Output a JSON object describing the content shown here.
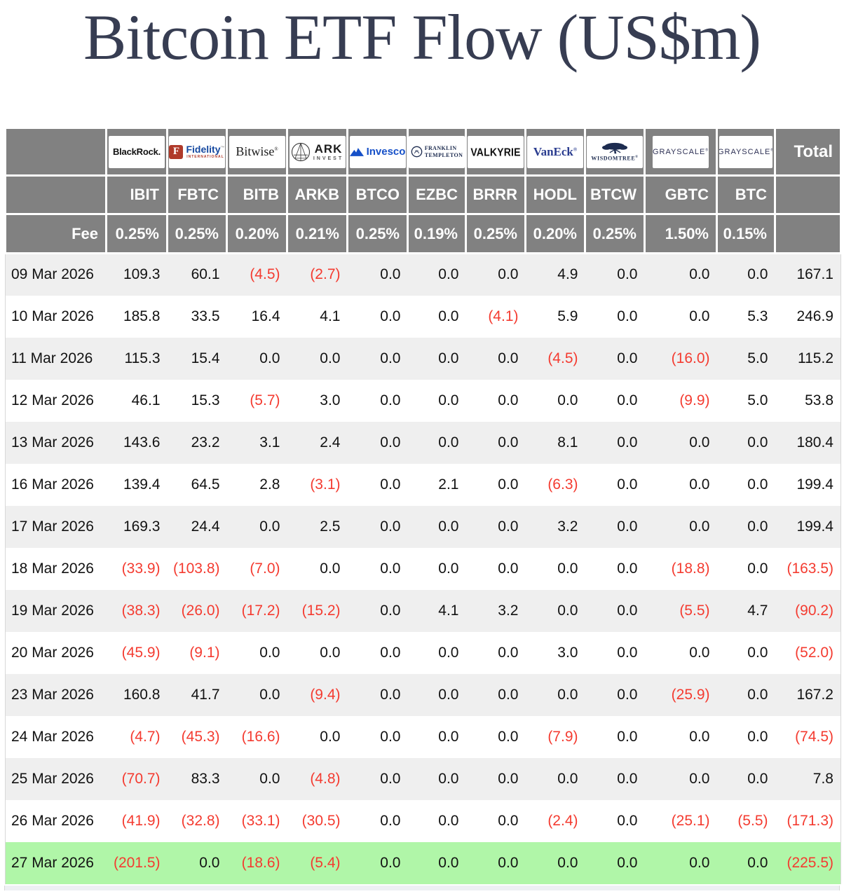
{
  "title": "Bitcoin ETF Flow (US$m)",
  "colors": {
    "title_navy": "#373d52",
    "header_gray": "#818181",
    "row_alt_gray": "#efefef",
    "highlight_green": "#b0f6a8",
    "negative_red": "#f43b30"
  },
  "table": {
    "fee_label": "Fee",
    "total_label": "Total",
    "providers": [
      {
        "name": "BlackRock",
        "logo_text": "BlackRock.",
        "ticker": "IBIT",
        "fee": "0.25%"
      },
      {
        "name": "Fidelity International",
        "logo_mark": "F",
        "logo_text": "Fidelity",
        "logo_sub": "INTERNATIONAL",
        "ticker": "FBTC",
        "fee": "0.25%"
      },
      {
        "name": "Bitwise",
        "logo_text": "Bitwise",
        "ticker": "BITB",
        "fee": "0.20%"
      },
      {
        "name": "ARK Invest",
        "logo_text": "ARK",
        "logo_sub": "INVEST",
        "ticker": "ARKB",
        "fee": "0.21%"
      },
      {
        "name": "Invesco",
        "logo_text": "Invesco",
        "ticker": "BTCO",
        "fee": "0.25%"
      },
      {
        "name": "Franklin Templeton",
        "logo_text": "FRANKLIN",
        "logo_sub": "TEMPLETON",
        "ticker": "EZBC",
        "fee": "0.19%"
      },
      {
        "name": "Valkyrie",
        "logo_text": "VALKYRIE",
        "ticker": "BRRR",
        "fee": "0.25%"
      },
      {
        "name": "VanEck",
        "logo_text": "VanEck",
        "ticker": "HODL",
        "fee": "0.20%"
      },
      {
        "name": "WisdomTree",
        "logo_text": "WISDOMTREE",
        "ticker": "BTCW",
        "fee": "0.25%"
      },
      {
        "name": "Grayscale",
        "logo_text": "GRAYSCALE",
        "ticker": "GBTC",
        "fee": "1.50%"
      },
      {
        "name": "Grayscale",
        "logo_text": "GRAYSCALE",
        "ticker": "BTC",
        "fee": "0.15%"
      }
    ],
    "rows": [
      {
        "date": "09 Mar 2026",
        "values": [
          "109.3",
          "60.1",
          "(4.5)",
          "(2.7)",
          "0.0",
          "0.0",
          "0.0",
          "4.9",
          "0.0",
          "0.0",
          "0.0",
          "167.1"
        ],
        "highlight": false
      },
      {
        "date": "10 Mar 2026",
        "values": [
          "185.8",
          "33.5",
          "16.4",
          "4.1",
          "0.0",
          "0.0",
          "(4.1)",
          "5.9",
          "0.0",
          "0.0",
          "5.3",
          "246.9"
        ],
        "highlight": false
      },
      {
        "date": "11 Mar 2026",
        "values": [
          "115.3",
          "15.4",
          "0.0",
          "0.0",
          "0.0",
          "0.0",
          "0.0",
          "(4.5)",
          "0.0",
          "(16.0)",
          "5.0",
          "115.2"
        ],
        "highlight": false
      },
      {
        "date": "12 Mar 2026",
        "values": [
          "46.1",
          "15.3",
          "(5.7)",
          "3.0",
          "0.0",
          "0.0",
          "0.0",
          "0.0",
          "0.0",
          "(9.9)",
          "5.0",
          "53.8"
        ],
        "highlight": false
      },
      {
        "date": "13 Mar 2026",
        "values": [
          "143.6",
          "23.2",
          "3.1",
          "2.4",
          "0.0",
          "0.0",
          "0.0",
          "8.1",
          "0.0",
          "0.0",
          "0.0",
          "180.4"
        ],
        "highlight": false
      },
      {
        "date": "16 Mar 2026",
        "values": [
          "139.4",
          "64.5",
          "2.8",
          "(3.1)",
          "0.0",
          "2.1",
          "0.0",
          "(6.3)",
          "0.0",
          "0.0",
          "0.0",
          "199.4"
        ],
        "highlight": false
      },
      {
        "date": "17 Mar 2026",
        "values": [
          "169.3",
          "24.4",
          "0.0",
          "2.5",
          "0.0",
          "0.0",
          "0.0",
          "3.2",
          "0.0",
          "0.0",
          "0.0",
          "199.4"
        ],
        "highlight": false
      },
      {
        "date": "18 Mar 2026",
        "values": [
          "(33.9)",
          "(103.8)",
          "(7.0)",
          "0.0",
          "0.0",
          "0.0",
          "0.0",
          "0.0",
          "0.0",
          "(18.8)",
          "0.0",
          "(163.5)"
        ],
        "highlight": false
      },
      {
        "date": "19 Mar 2026",
        "values": [
          "(38.3)",
          "(26.0)",
          "(17.2)",
          "(15.2)",
          "0.0",
          "4.1",
          "3.2",
          "0.0",
          "0.0",
          "(5.5)",
          "4.7",
          "(90.2)"
        ],
        "highlight": false
      },
      {
        "date": "20 Mar 2026",
        "values": [
          "(45.9)",
          "(9.1)",
          "0.0",
          "0.0",
          "0.0",
          "0.0",
          "0.0",
          "3.0",
          "0.0",
          "0.0",
          "0.0",
          "(52.0)"
        ],
        "highlight": false
      },
      {
        "date": "23 Mar 2026",
        "values": [
          "160.8",
          "41.7",
          "0.0",
          "(9.4)",
          "0.0",
          "0.0",
          "0.0",
          "0.0",
          "0.0",
          "(25.9)",
          "0.0",
          "167.2"
        ],
        "highlight": false
      },
      {
        "date": "24 Mar 2026",
        "values": [
          "(4.7)",
          "(45.3)",
          "(16.6)",
          "0.0",
          "0.0",
          "0.0",
          "0.0",
          "(7.9)",
          "0.0",
          "0.0",
          "0.0",
          "(74.5)"
        ],
        "highlight": false
      },
      {
        "date": "25 Mar 2026",
        "values": [
          "(70.7)",
          "83.3",
          "0.0",
          "(4.8)",
          "0.0",
          "0.0",
          "0.0",
          "0.0",
          "0.0",
          "0.0",
          "0.0",
          "7.8"
        ],
        "highlight": false
      },
      {
        "date": "26 Mar 2026",
        "values": [
          "(41.9)",
          "(32.8)",
          "(33.1)",
          "(30.5)",
          "0.0",
          "0.0",
          "0.0",
          "(2.4)",
          "0.0",
          "(25.1)",
          "(5.5)",
          "(171.3)"
        ],
        "highlight": false
      },
      {
        "date": "27 Mar 2026",
        "values": [
          "(201.5)",
          "0.0",
          "(18.6)",
          "(5.4)",
          "0.0",
          "0.0",
          "0.0",
          "0.0",
          "0.0",
          "0.0",
          "0.0",
          "(225.5)"
        ],
        "highlight": true
      }
    ]
  }
}
